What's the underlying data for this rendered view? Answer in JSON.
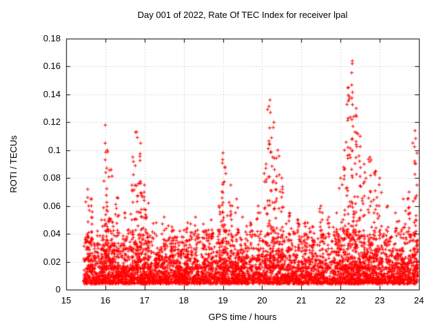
{
  "chart_data": {
    "type": "scatter",
    "title": "Day 001 of 2022, Rate Of TEC Index for receiver lpal",
    "xlabel": "GPS time / hours",
    "ylabel": "ROTI / TECUs",
    "xlim": [
      15,
      24
    ],
    "ylim": [
      0,
      0.18
    ],
    "grid": true,
    "legend": "none",
    "marker": {
      "shape": "plus",
      "color": "#ff0000",
      "size": 5
    },
    "grid_color": "#b8b8b8",
    "axis_color": "#000000",
    "xticks": {
      "values": [
        15,
        16,
        17,
        18,
        19,
        20,
        21,
        22,
        23,
        24
      ],
      "labels": [
        "15",
        "16",
        "17",
        "18",
        "19",
        "20",
        "21",
        "22",
        "23",
        "24"
      ]
    },
    "yticks": {
      "values": [
        0,
        0.02,
        0.04,
        0.06,
        0.08,
        0.1,
        0.12,
        0.14,
        0.16,
        0.18
      ],
      "labels": [
        "0",
        "0.02",
        "0.04",
        "0.06",
        "0.08",
        "0.1",
        "0.12",
        "0.14",
        "0.16",
        "0.18"
      ]
    },
    "data_start_x": 15.45,
    "data_end_x": 24.0,
    "seed": 20220101,
    "baseline": {
      "count": 3600,
      "y_min": 0.004,
      "y_scale": 0.008,
      "y_cap": 0.05
    },
    "midband": {
      "count": 650,
      "y_min": 0.02,
      "y_max": 0.043
    },
    "spikes": [
      [
        15.55,
        0.072
      ],
      [
        15.65,
        0.065
      ],
      [
        15.9,
        0.05
      ],
      [
        16.0,
        0.118
      ],
      [
        16.05,
        0.1
      ],
      [
        16.15,
        0.086
      ],
      [
        16.3,
        0.066
      ],
      [
        16.5,
        0.055
      ],
      [
        16.7,
        0.095
      ],
      [
        16.8,
        0.113
      ],
      [
        16.9,
        0.105
      ],
      [
        17.0,
        0.075
      ],
      [
        17.1,
        0.062
      ],
      [
        17.3,
        0.048
      ],
      [
        17.5,
        0.052
      ],
      [
        17.7,
        0.045
      ],
      [
        17.9,
        0.042
      ],
      [
        18.1,
        0.048
      ],
      [
        18.3,
        0.052
      ],
      [
        18.5,
        0.047
      ],
      [
        18.7,
        0.05
      ],
      [
        18.9,
        0.06
      ],
      [
        19.0,
        0.098
      ],
      [
        19.05,
        0.088
      ],
      [
        19.2,
        0.075
      ],
      [
        19.35,
        0.065
      ],
      [
        19.5,
        0.052
      ],
      [
        19.7,
        0.048
      ],
      [
        19.9,
        0.06
      ],
      [
        20.1,
        0.09
      ],
      [
        20.2,
        0.136
      ],
      [
        20.3,
        0.12
      ],
      [
        20.4,
        0.1
      ],
      [
        20.5,
        0.08
      ],
      [
        20.7,
        0.055
      ],
      [
        20.9,
        0.05
      ],
      [
        21.1,
        0.048
      ],
      [
        21.3,
        0.045
      ],
      [
        21.5,
        0.06
      ],
      [
        21.7,
        0.052
      ],
      [
        21.9,
        0.055
      ],
      [
        22.0,
        0.08
      ],
      [
        22.1,
        0.1
      ],
      [
        22.2,
        0.145
      ],
      [
        22.3,
        0.164
      ],
      [
        22.4,
        0.13
      ],
      [
        22.5,
        0.11
      ],
      [
        22.6,
        0.09
      ],
      [
        22.75,
        0.095
      ],
      [
        22.9,
        0.085
      ],
      [
        23.0,
        0.08
      ],
      [
        23.2,
        0.06
      ],
      [
        23.4,
        0.055
      ],
      [
        23.6,
        0.065
      ],
      [
        23.75,
        0.07
      ],
      [
        23.9,
        0.114
      ],
      [
        23.95,
        0.075
      ]
    ],
    "spike_jitter_x": 0.035,
    "spike_y_floor": 0.015,
    "spike_count_factor": 290
  }
}
